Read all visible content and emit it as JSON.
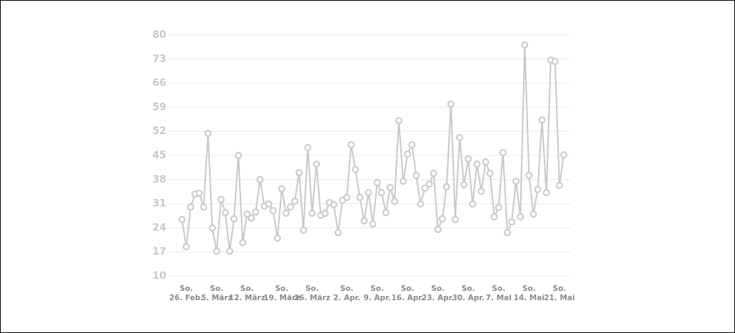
{
  "chart_data": {
    "type": "line",
    "categories": [
      null,
      [
        "So.",
        "26. Feb."
      ],
      null,
      null,
      null,
      null,
      null,
      null,
      [
        "So.",
        "5. März"
      ],
      null,
      null,
      null,
      null,
      null,
      null,
      [
        "So.",
        "12. März"
      ],
      null,
      null,
      null,
      null,
      null,
      null,
      null,
      [
        "So.",
        "19. März"
      ],
      null,
      null,
      null,
      null,
      null,
      null,
      [
        "So.",
        "26. März"
      ],
      null,
      null,
      null,
      null,
      null,
      null,
      null,
      [
        "So.",
        "2. Apr."
      ],
      null,
      null,
      null,
      null,
      null,
      null,
      [
        "So.",
        "9. Apr."
      ],
      null,
      null,
      null,
      null,
      null,
      null,
      [
        "So.",
        "16. Apr."
      ],
      null,
      null,
      null,
      null,
      null,
      null,
      [
        "So.",
        "23. Apr."
      ],
      null,
      null,
      null,
      null,
      null,
      null,
      [
        "So.",
        "30. Apr."
      ],
      null,
      null,
      null,
      null,
      null,
      null,
      [
        "So.",
        "7. Mai"
      ],
      null,
      null,
      null,
      null,
      null,
      null,
      [
        "So.",
        "14. Mai"
      ],
      null,
      null,
      null,
      null,
      null,
      null,
      [
        "So.",
        "21. Mai"
      ],
      null
    ],
    "series": [
      {
        "color": "#c8c8c8",
        "values": [
          26.4,
          18.5,
          30,
          33.8,
          34,
          30,
          51.4,
          23.9,
          17.2,
          32.2,
          28.4,
          17.2,
          26.6,
          45,
          19.7,
          28,
          26.8,
          28.6,
          38,
          30.3,
          30.9,
          29,
          21,
          35.3,
          28.2,
          30,
          31.7,
          40,
          23.3,
          47.3,
          28.2,
          42.5,
          27.6,
          28.2,
          31.3,
          30.7,
          22.6,
          32,
          32.8,
          48.1,
          40.9,
          32.8,
          26,
          34.2,
          25.1,
          37.1,
          34.2,
          28.4,
          35.7,
          31.7,
          55.1,
          37.5,
          45.4,
          48.1,
          39.2,
          30.9,
          35.5,
          36.7,
          39.8,
          23.5,
          26.6,
          35.9,
          59.9,
          26.4,
          50.2,
          36.5,
          44,
          30.9,
          42.5,
          34.6,
          43.1,
          39.8,
          27.2,
          29.9,
          45.8,
          22.6,
          25.7,
          37.5,
          27.2,
          77.1,
          39.2,
          28,
          35.1,
          55.3,
          34.2,
          72.7,
          72.3,
          36.3,
          45.2
        ]
      }
    ],
    "ylim": [
      10,
      80
    ],
    "yticks": [
      10,
      17,
      24,
      31,
      38,
      45,
      52,
      59,
      66,
      73,
      80
    ],
    "grid": true
  }
}
